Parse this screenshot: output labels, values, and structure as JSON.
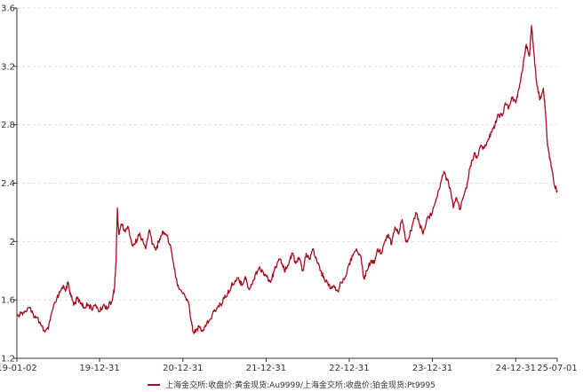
{
  "chart_data": {
    "type": "line",
    "title": "",
    "xlabel": "",
    "ylabel": "",
    "x_range": [
      "2019-01-02",
      "2025-07-01"
    ],
    "ylim": [
      1.2,
      3.6
    ],
    "y_ticks": [
      "1.2",
      "1.6",
      "2",
      "2.4",
      "2.8",
      "3.2",
      "3.6"
    ],
    "x_ticks": [
      {
        "date": "2019-01-02",
        "label": "19-01-02"
      },
      {
        "date": "2019-12-31",
        "label": "19-12-31"
      },
      {
        "date": "2020-12-31",
        "label": "20-12-31"
      },
      {
        "date": "2021-12-31",
        "label": "21-12-31"
      },
      {
        "date": "2022-12-31",
        "label": "22-12-31"
      },
      {
        "date": "2023-12-31",
        "label": "23-12-31"
      },
      {
        "date": "2024-12-31",
        "label": "24-12-31"
      },
      {
        "date": "2025-07-01",
        "label": "25-07-01"
      }
    ],
    "grid": {
      "horizontal": true,
      "vertical": false
    },
    "legend_position": "bottom-center",
    "series": [
      {
        "name": "上海金交所:收盘价:黄金现货:Au9999/上海金交所:收盘价:铂金现货:Pt9995",
        "color": "#a50d1f",
        "points": [
          [
            "2019-01-02",
            1.49
          ],
          [
            "2019-01-20",
            1.51
          ],
          [
            "2019-02-10",
            1.52
          ],
          [
            "2019-03-01",
            1.55
          ],
          [
            "2019-03-15",
            1.5
          ],
          [
            "2019-04-01",
            1.48
          ],
          [
            "2019-04-20",
            1.42
          ],
          [
            "2019-05-05",
            1.38
          ],
          [
            "2019-05-20",
            1.4
          ],
          [
            "2019-06-05",
            1.52
          ],
          [
            "2019-06-25",
            1.6
          ],
          [
            "2019-07-10",
            1.65
          ],
          [
            "2019-07-25",
            1.7
          ],
          [
            "2019-08-05",
            1.67
          ],
          [
            "2019-08-15",
            1.72
          ],
          [
            "2019-08-28",
            1.62
          ],
          [
            "2019-09-10",
            1.57
          ],
          [
            "2019-09-25",
            1.61
          ],
          [
            "2019-10-10",
            1.58
          ],
          [
            "2019-10-25",
            1.55
          ],
          [
            "2019-11-10",
            1.57
          ],
          [
            "2019-11-25",
            1.54
          ],
          [
            "2019-12-10",
            1.56
          ],
          [
            "2019-12-31",
            1.52
          ],
          [
            "2020-01-15",
            1.56
          ],
          [
            "2020-02-05",
            1.55
          ],
          [
            "2020-02-25",
            1.6
          ],
          [
            "2020-03-05",
            1.68
          ],
          [
            "2020-03-12",
            1.85
          ],
          [
            "2020-03-18",
            2.23
          ],
          [
            "2020-03-24",
            2.05
          ],
          [
            "2020-04-05",
            2.12
          ],
          [
            "2020-04-20",
            2.07
          ],
          [
            "2020-05-05",
            2.1
          ],
          [
            "2020-05-20",
            1.98
          ],
          [
            "2020-06-05",
            1.99
          ],
          [
            "2020-06-20",
            2.05
          ],
          [
            "2020-07-05",
            2.02
          ],
          [
            "2020-07-20",
            1.95
          ],
          [
            "2020-08-05",
            2.08
          ],
          [
            "2020-08-20",
            1.98
          ],
          [
            "2020-09-05",
            1.95
          ],
          [
            "2020-09-20",
            2.02
          ],
          [
            "2020-10-05",
            2.07
          ],
          [
            "2020-10-20",
            2.04
          ],
          [
            "2020-11-05",
            1.98
          ],
          [
            "2020-11-20",
            1.85
          ],
          [
            "2020-12-05",
            1.72
          ],
          [
            "2020-12-20",
            1.67
          ],
          [
            "2021-01-10",
            1.62
          ],
          [
            "2021-01-25",
            1.58
          ],
          [
            "2021-02-05",
            1.45
          ],
          [
            "2021-02-15",
            1.38
          ],
          [
            "2021-03-01",
            1.4
          ],
          [
            "2021-03-15",
            1.41
          ],
          [
            "2021-04-01",
            1.39
          ],
          [
            "2021-04-15",
            1.44
          ],
          [
            "2021-05-01",
            1.47
          ],
          [
            "2021-05-15",
            1.52
          ],
          [
            "2021-06-01",
            1.55
          ],
          [
            "2021-06-15",
            1.57
          ],
          [
            "2021-07-01",
            1.61
          ],
          [
            "2021-07-15",
            1.64
          ],
          [
            "2021-08-01",
            1.7
          ],
          [
            "2021-08-15",
            1.72
          ],
          [
            "2021-09-01",
            1.75
          ],
          [
            "2021-09-15",
            1.7
          ],
          [
            "2021-10-01",
            1.76
          ],
          [
            "2021-10-15",
            1.68
          ],
          [
            "2021-11-01",
            1.71
          ],
          [
            "2021-11-15",
            1.78
          ],
          [
            "2021-12-01",
            1.82
          ],
          [
            "2021-12-15",
            1.8
          ],
          [
            "2022-01-01",
            1.76
          ],
          [
            "2022-01-20",
            1.72
          ],
          [
            "2022-02-05",
            1.8
          ],
          [
            "2022-02-25",
            1.88
          ],
          [
            "2022-03-10",
            1.85
          ],
          [
            "2022-03-25",
            1.8
          ],
          [
            "2022-04-10",
            1.85
          ],
          [
            "2022-04-25",
            1.92
          ],
          [
            "2022-05-10",
            1.85
          ],
          [
            "2022-05-25",
            1.89
          ],
          [
            "2022-06-10",
            1.8
          ],
          [
            "2022-06-25",
            1.92
          ],
          [
            "2022-07-10",
            1.88
          ],
          [
            "2022-07-25",
            1.95
          ],
          [
            "2022-08-10",
            1.87
          ],
          [
            "2022-08-25",
            1.8
          ],
          [
            "2022-09-10",
            1.76
          ],
          [
            "2022-09-25",
            1.72
          ],
          [
            "2022-10-10",
            1.68
          ],
          [
            "2022-10-25",
            1.7
          ],
          [
            "2022-11-10",
            1.66
          ],
          [
            "2022-11-25",
            1.72
          ],
          [
            "2022-12-10",
            1.74
          ],
          [
            "2022-12-31",
            1.85
          ],
          [
            "2023-01-15",
            1.9
          ],
          [
            "2023-02-01",
            1.95
          ],
          [
            "2023-02-20",
            1.9
          ],
          [
            "2023-03-05",
            1.75
          ],
          [
            "2023-03-20",
            1.8
          ],
          [
            "2023-04-05",
            1.87
          ],
          [
            "2023-04-20",
            1.85
          ],
          [
            "2023-05-05",
            1.95
          ],
          [
            "2023-05-20",
            1.92
          ],
          [
            "2023-06-05",
            2.0
          ],
          [
            "2023-06-20",
            2.05
          ],
          [
            "2023-07-05",
            1.98
          ],
          [
            "2023-07-20",
            2.1
          ],
          [
            "2023-08-05",
            2.05
          ],
          [
            "2023-08-20",
            2.15
          ],
          [
            "2023-09-05",
            2.0
          ],
          [
            "2023-09-20",
            2.03
          ],
          [
            "2023-10-05",
            2.12
          ],
          [
            "2023-10-20",
            2.2
          ],
          [
            "2023-11-05",
            2.12
          ],
          [
            "2023-11-20",
            2.05
          ],
          [
            "2023-12-05",
            2.14
          ],
          [
            "2023-12-31",
            2.2
          ],
          [
            "2024-01-20",
            2.3
          ],
          [
            "2024-02-05",
            2.4
          ],
          [
            "2024-02-20",
            2.48
          ],
          [
            "2024-03-05",
            2.42
          ],
          [
            "2024-03-20",
            2.35
          ],
          [
            "2024-04-01",
            2.23
          ],
          [
            "2024-04-15",
            2.3
          ],
          [
            "2024-05-01",
            2.22
          ],
          [
            "2024-05-15",
            2.3
          ],
          [
            "2024-06-01",
            2.4
          ],
          [
            "2024-06-15",
            2.52
          ],
          [
            "2024-07-01",
            2.6
          ],
          [
            "2024-07-15",
            2.58
          ],
          [
            "2024-08-01",
            2.66
          ],
          [
            "2024-08-15",
            2.64
          ],
          [
            "2024-09-01",
            2.7
          ],
          [
            "2024-09-15",
            2.75
          ],
          [
            "2024-10-01",
            2.8
          ],
          [
            "2024-10-15",
            2.87
          ],
          [
            "2024-11-01",
            2.86
          ],
          [
            "2024-11-15",
            2.95
          ],
          [
            "2024-12-01",
            2.92
          ],
          [
            "2024-12-15",
            2.98
          ],
          [
            "2024-12-31",
            2.95
          ],
          [
            "2025-01-15",
            3.05
          ],
          [
            "2025-02-01",
            3.2
          ],
          [
            "2025-02-15",
            3.35
          ],
          [
            "2025-03-01",
            3.27
          ],
          [
            "2025-03-10",
            3.48
          ],
          [
            "2025-03-20",
            3.3
          ],
          [
            "2025-04-01",
            3.1
          ],
          [
            "2025-04-15",
            2.97
          ],
          [
            "2025-05-01",
            3.05
          ],
          [
            "2025-05-10",
            2.9
          ],
          [
            "2025-05-20",
            2.65
          ],
          [
            "2025-06-01",
            2.55
          ],
          [
            "2025-06-10",
            2.48
          ],
          [
            "2025-06-20",
            2.38
          ],
          [
            "2025-07-01",
            2.35
          ]
        ]
      }
    ]
  }
}
